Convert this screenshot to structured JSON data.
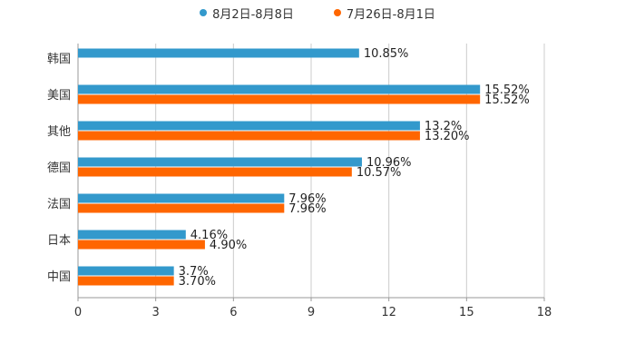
{
  "chart_data": {
    "type": "bar",
    "orientation": "horizontal",
    "categories": [
      "韩国",
      "美国",
      "其他",
      "德国",
      "法国",
      "日本",
      "中国"
    ],
    "series": [
      {
        "name": "8月2日-8月8日",
        "color": "#3399cc",
        "values": [
          10.85,
          15.52,
          13.2,
          10.96,
          7.96,
          4.16,
          3.7
        ],
        "labels": [
          "10.85%",
          "15.52%",
          "13.2%",
          "10.96%",
          "7.96%",
          "4.16%",
          "3.7%"
        ]
      },
      {
        "name": "7月26日-8月1日",
        "color": "#ff6600",
        "values": [
          null,
          15.52,
          13.2,
          10.57,
          7.96,
          4.9,
          3.7
        ],
        "labels": [
          "",
          "15.52%",
          "13.20%",
          "10.57%",
          "7.96%",
          "4.90%",
          "3.70%"
        ]
      }
    ],
    "xlim": [
      0,
      18
    ],
    "xticks": [
      0,
      3,
      6,
      9,
      12,
      15,
      18
    ],
    "xtick_labels": [
      "0",
      "3",
      "6",
      "9",
      "12",
      "15",
      "18"
    ],
    "grid": true,
    "legend_position": "top-center"
  }
}
